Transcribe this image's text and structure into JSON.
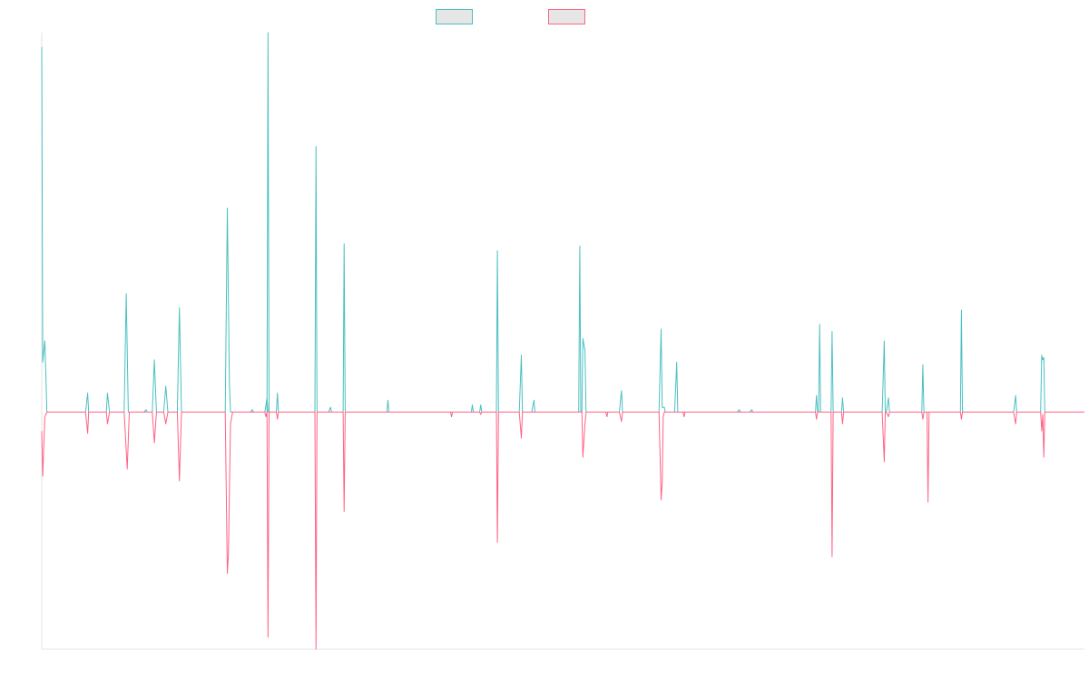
{
  "chart_data": {
    "type": "line",
    "title": "",
    "xlabel": "",
    "ylabel": "",
    "legend_position": "top-center",
    "grid": false,
    "x_ticks_visible": false,
    "y_ticks_visible": false,
    "xlim": [
      0,
      1000
    ],
    "ylim": [
      -100,
      160
    ],
    "series": [
      {
        "name": "",
        "color": "#4bc0c0",
        "fill_color": "#e6e6e6",
        "points": [
          [
            0,
            154
          ],
          [
            1,
            21
          ],
          [
            3,
            30
          ],
          [
            5,
            0
          ],
          [
            42,
            0
          ],
          [
            44,
            8
          ],
          [
            45,
            0
          ],
          [
            62,
            0
          ],
          [
            63,
            8
          ],
          [
            65,
            0
          ],
          [
            79,
            0
          ],
          [
            81,
            50
          ],
          [
            83,
            0
          ],
          [
            98,
            0
          ],
          [
            100,
            1
          ],
          [
            101,
            0
          ],
          [
            106,
            0
          ],
          [
            108,
            22
          ],
          [
            110,
            0
          ],
          [
            117,
            0
          ],
          [
            119,
            11
          ],
          [
            121,
            0
          ],
          [
            130,
            0
          ],
          [
            132,
            44
          ],
          [
            134,
            0
          ],
          [
            176,
            0
          ],
          [
            178,
            86
          ],
          [
            180,
            12
          ],
          [
            181,
            0
          ],
          [
            200,
            0
          ],
          [
            202,
            1
          ],
          [
            203,
            0
          ],
          [
            214,
            0
          ],
          [
            216,
            6
          ],
          [
            217,
            0
          ],
          [
            216,
            0
          ],
          [
            217,
            160
          ],
          [
            218,
            0
          ],
          [
            225,
            0
          ],
          [
            226,
            8
          ],
          [
            227,
            0
          ],
          [
            262,
            0
          ],
          [
            263,
            112
          ],
          [
            264,
            0
          ],
          [
            275,
            0
          ],
          [
            277,
            2
          ],
          [
            278,
            0
          ],
          [
            289,
            0
          ],
          [
            290,
            71
          ],
          [
            291,
            0
          ],
          [
            331,
            0
          ],
          [
            332,
            5
          ],
          [
            333,
            0
          ],
          [
            412,
            0
          ],
          [
            413,
            3
          ],
          [
            414,
            0
          ],
          [
            420,
            0
          ],
          [
            421,
            3
          ],
          [
            422,
            0
          ],
          [
            436,
            0
          ],
          [
            437,
            68
          ],
          [
            438,
            0
          ],
          [
            458,
            0
          ],
          [
            460,
            24
          ],
          [
            461,
            0
          ],
          [
            470,
            0
          ],
          [
            472,
            5
          ],
          [
            473,
            0
          ],
          [
            515,
            0
          ],
          [
            516,
            70
          ],
          [
            517,
            0
          ],
          [
            518,
            0
          ],
          [
            519,
            31
          ],
          [
            521,
            26
          ],
          [
            522,
            0
          ],
          [
            554,
            0
          ],
          [
            556,
            9
          ],
          [
            557,
            0
          ],
          [
            592,
            0
          ],
          [
            594,
            35
          ],
          [
            595,
            2
          ],
          [
            597,
            2
          ],
          [
            598,
            0
          ],
          [
            607,
            0
          ],
          [
            609,
            21
          ],
          [
            610,
            0
          ],
          [
            667,
            0
          ],
          [
            669,
            1
          ],
          [
            670,
            0
          ],
          [
            679,
            0
          ],
          [
            681,
            1
          ],
          [
            682,
            0
          ],
          [
            742,
            0
          ],
          [
            743,
            7
          ],
          [
            744,
            0
          ],
          [
            745,
            0
          ],
          [
            746,
            37
          ],
          [
            747,
            0
          ],
          [
            757,
            0
          ],
          [
            758,
            34
          ],
          [
            759,
            0
          ],
          [
            767,
            0
          ],
          [
            768,
            6
          ],
          [
            769,
            0
          ],
          [
            806,
            0
          ],
          [
            808,
            30
          ],
          [
            809,
            0
          ],
          [
            810,
            0
          ],
          [
            812,
            6
          ],
          [
            813,
            0
          ],
          [
            844,
            0
          ],
          [
            845,
            20
          ],
          [
            846,
            0
          ],
          [
            881,
            0
          ],
          [
            882,
            43
          ],
          [
            883,
            0
          ],
          [
            932,
            0
          ],
          [
            934,
            7
          ],
          [
            935,
            0
          ],
          [
            958,
            0
          ],
          [
            959,
            24
          ],
          [
            960,
            22
          ],
          [
            961,
            23
          ],
          [
            962,
            0
          ],
          [
            1000,
            0
          ]
        ]
      },
      {
        "name": "",
        "color": "#ff6384",
        "fill_color": "#e6e6e6",
        "points": [
          [
            0,
            -8
          ],
          [
            1,
            -27
          ],
          [
            3,
            -2
          ],
          [
            5,
            0
          ],
          [
            42,
            0
          ],
          [
            44,
            -9
          ],
          [
            45,
            0
          ],
          [
            62,
            0
          ],
          [
            63,
            -5
          ],
          [
            65,
            0
          ],
          [
            79,
            0
          ],
          [
            82,
            -24
          ],
          [
            84,
            0
          ],
          [
            106,
            0
          ],
          [
            108,
            -13
          ],
          [
            110,
            0
          ],
          [
            117,
            0
          ],
          [
            119,
            -5
          ],
          [
            121,
            0
          ],
          [
            130,
            0
          ],
          [
            132,
            -29
          ],
          [
            134,
            0
          ],
          [
            176,
            0
          ],
          [
            178,
            -68
          ],
          [
            179,
            -60
          ],
          [
            181,
            -5
          ],
          [
            183,
            0
          ],
          [
            214,
            0
          ],
          [
            215,
            -2
          ],
          [
            216,
            0
          ],
          [
            216,
            0
          ],
          [
            217,
            -95
          ],
          [
            218,
            0
          ],
          [
            225,
            0
          ],
          [
            226,
            -3
          ],
          [
            227,
            0
          ],
          [
            262,
            0
          ],
          [
            263,
            -100
          ],
          [
            264,
            0
          ],
          [
            289,
            0
          ],
          [
            290,
            -42
          ],
          [
            291,
            0
          ],
          [
            392,
            0
          ],
          [
            393,
            -2
          ],
          [
            394,
            0
          ],
          [
            420,
            0
          ],
          [
            421,
            -1
          ],
          [
            422,
            0
          ],
          [
            436,
            0
          ],
          [
            437,
            -55
          ],
          [
            438,
            0
          ],
          [
            458,
            0
          ],
          [
            460,
            -11
          ],
          [
            461,
            0
          ],
          [
            518,
            0
          ],
          [
            519,
            -19
          ],
          [
            521,
            -5
          ],
          [
            522,
            0
          ],
          [
            541,
            0
          ],
          [
            542,
            -2
          ],
          [
            543,
            0
          ],
          [
            554,
            0
          ],
          [
            556,
            -4
          ],
          [
            557,
            0
          ],
          [
            592,
            0
          ],
          [
            594,
            -37
          ],
          [
            595,
            -30
          ],
          [
            596,
            -2
          ],
          [
            597,
            0
          ],
          [
            615,
            0
          ],
          [
            616,
            -2
          ],
          [
            617,
            0
          ],
          [
            742,
            0
          ],
          [
            743,
            -3
          ],
          [
            744,
            0
          ],
          [
            757,
            0
          ],
          [
            758,
            -61
          ],
          [
            759,
            0
          ],
          [
            767,
            0
          ],
          [
            768,
            -5
          ],
          [
            769,
            0
          ],
          [
            806,
            0
          ],
          [
            808,
            -21
          ],
          [
            809,
            0
          ],
          [
            810,
            0
          ],
          [
            812,
            -2
          ],
          [
            813,
            0
          ],
          [
            844,
            0
          ],
          [
            845,
            -3
          ],
          [
            846,
            0
          ],
          [
            849,
            0
          ],
          [
            850,
            -38
          ],
          [
            851,
            0
          ],
          [
            881,
            0
          ],
          [
            882,
            -3
          ],
          [
            883,
            0
          ],
          [
            932,
            0
          ],
          [
            934,
            -5
          ],
          [
            935,
            0
          ],
          [
            958,
            0
          ],
          [
            959,
            -8
          ],
          [
            960,
            -1
          ],
          [
            961,
            -19
          ],
          [
            962,
            0
          ],
          [
            1000,
            0
          ]
        ]
      }
    ]
  }
}
